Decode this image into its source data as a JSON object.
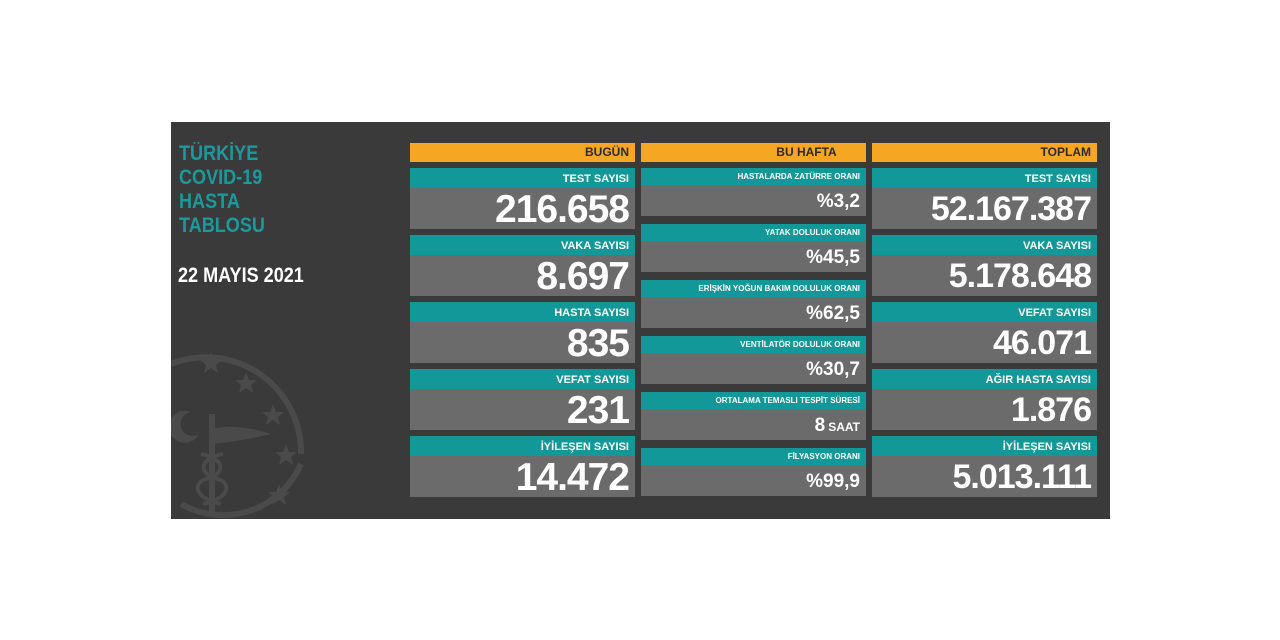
{
  "header": {
    "title_lines": [
      "TÜRKİYE",
      "COVID-19",
      "HASTA",
      "TABLOSU"
    ],
    "date": "22 MAYIS 2021"
  },
  "colors": {
    "teal": "#13989a",
    "orange": "#f5a623",
    "panel": "#3a3a3a",
    "value_bg": "#6b6b6b"
  },
  "emblem_icon": "ministry-of-health-emblem-icon",
  "today": {
    "heading": "BUGÜN",
    "cards": [
      {
        "label": "TEST SAYISI",
        "value": "216.658"
      },
      {
        "label": "VAKA SAYISI",
        "value": "8.697"
      },
      {
        "label": "HASTA SAYISI",
        "value": "835"
      },
      {
        "label": "VEFAT SAYISI",
        "value": "231"
      },
      {
        "label": "İYİLEŞEN SAYISI",
        "value": "14.472"
      }
    ]
  },
  "this_week": {
    "heading": "BU HAFTA",
    "cards": [
      {
        "label": "HASTALARDA ZATÜRRE ORANI",
        "value": "%3,2"
      },
      {
        "label": "YATAK DOLULUK ORANI",
        "value": "%45,5"
      },
      {
        "label": "ERİŞKİN YOĞUN BAKIM DOLULUK ORANI",
        "value": "%62,5"
      },
      {
        "label": "VENTİLATÖR DOLULUK ORANI",
        "value": "%30,7"
      },
      {
        "label": "ORTALAMA TEMASLI TESPİT SÜRESİ",
        "value": "8",
        "unit": "SAAT"
      },
      {
        "label": "FİLYASYON ORANI",
        "value": "%99,9"
      }
    ]
  },
  "total": {
    "heading": "TOPLAM",
    "cards": [
      {
        "label": "TEST SAYISI",
        "value": "52.167.387"
      },
      {
        "label": "VAKA SAYISI",
        "value": "5.178.648"
      },
      {
        "label": "VEFAT SAYISI",
        "value": "46.071"
      },
      {
        "label": "AĞIR HASTA SAYISI",
        "value": "1.876"
      },
      {
        "label": "İYİLEŞEN SAYISI",
        "value": "5.013.111"
      }
    ]
  }
}
